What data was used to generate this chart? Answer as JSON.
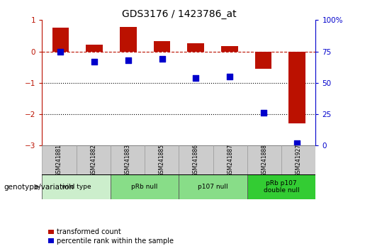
{
  "title": "GDS3176 / 1423786_at",
  "samples": [
    "GSM241881",
    "GSM241882",
    "GSM241883",
    "GSM241885",
    "GSM241886",
    "GSM241887",
    "GSM241888",
    "GSM241927"
  ],
  "transformed_count": [
    0.75,
    0.22,
    0.78,
    0.32,
    0.27,
    0.18,
    -0.55,
    -2.3
  ],
  "percentile_rank": [
    75,
    67,
    68,
    69,
    54,
    55,
    26,
    2
  ],
  "ylim_left": [
    -3,
    1
  ],
  "ylim_right": [
    0,
    100
  ],
  "yticks_left": [
    -3,
    -2,
    -1,
    0,
    1
  ],
  "yticks_right": [
    0,
    25,
    50,
    75,
    100
  ],
  "yticklabels_right": [
    "0",
    "25",
    "50",
    "75",
    "100%"
  ],
  "hline_y": 0,
  "dotted_lines": [
    -1,
    -2
  ],
  "bar_color": "#bb1100",
  "dot_color": "#0000cc",
  "group_labels": [
    "wild type",
    "pRb null",
    "p107 null",
    "pRb p107\ndouble null"
  ],
  "group_starts": [
    0,
    2,
    4,
    6
  ],
  "group_ends": [
    2,
    4,
    6,
    8
  ],
  "group_colors": [
    "#cceecc",
    "#88dd88",
    "#88dd88",
    "#33cc33"
  ],
  "legend_labels": [
    "transformed count",
    "percentile rank within the sample"
  ],
  "legend_colors": [
    "#bb1100",
    "#0000cc"
  ],
  "genotype_label": "genotype/variation",
  "bar_width": 0.5,
  "dot_size": 40,
  "sample_box_color": "#cccccc",
  "sample_box_edge": "#999999",
  "background_color": "#ffffff"
}
